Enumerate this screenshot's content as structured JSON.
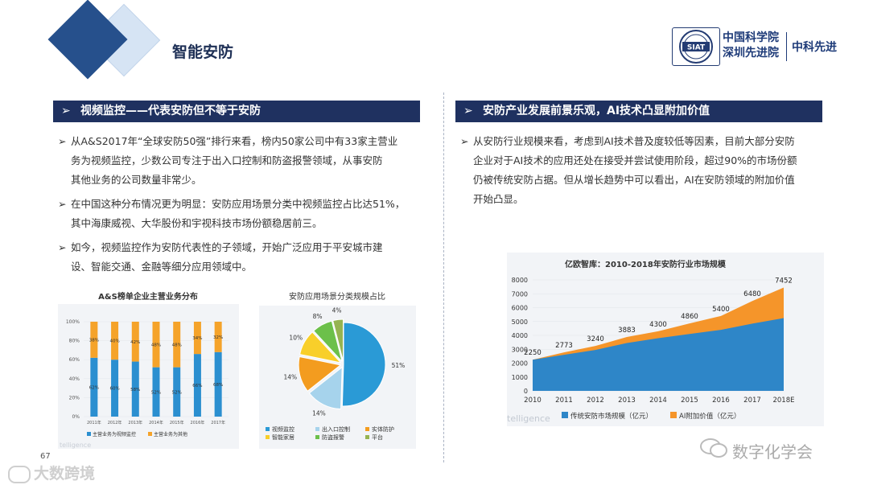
{
  "header": {
    "title": "智能安防",
    "logo_badge": "SIAT",
    "logo_line1": "中国科学院",
    "logo_line2": "深圳先进院",
    "logo_brand": "中科先进"
  },
  "left": {
    "section_title": "视频监控——代表安防但不等于安防",
    "bullet_glyph": "➢",
    "bullets": [
      {
        "lines": [
          "从A&S2017年“全球安防50强”排行来看，榜内50家公司中有33家主营业",
          "务为视频监控，少数公司专注于出入口控制和防盗报警领域，从事安防",
          "其他业务的公司数量非常少。"
        ]
      },
      {
        "lines": [
          "在中国这种分布情况更为明显：安防应用场景分类中视频监控占比达51%，",
          "其中海康威视、大华股份和宇视科技市场份额稳居前三。"
        ]
      },
      {
        "lines": [
          "如今，视频监控作为安防代表性的子领域，开始广泛应用于平安城市建",
          "设、智能交通、金融等细分应用领域中。"
        ]
      }
    ]
  },
  "right": {
    "section_title": "安防产业发展前景乐观，AI技术凸显附加价值",
    "bullets": [
      {
        "lines": [
          "从安防行业规模来看，考虑到AI技术普及度较低等因素，目前大部分安防",
          "企业对于AI技术的应用还处在接受并尝试使用阶段，超过90%的市场份额",
          "仍被传统安防占据。但从增长趋势中可以看出，AI在安防领域的附加价值",
          "开始凸显。"
        ]
      }
    ]
  },
  "footer": {
    "page_number": "67",
    "watermark_left": "大数跨境",
    "watermark_right": "数字化学会",
    "chart_watermark": "telligence"
  },
  "colors": {
    "navy": "#1f3160",
    "blue": "#2b8fd0",
    "orange": "#f5a32a",
    "chart_blue": "#2e86c8",
    "chart_orange": "#f5952a"
  },
  "chart_data": [
    {
      "type": "bar",
      "title": "A&S榜单企业主营业务分布",
      "categories": [
        "2011年",
        "2012年",
        "2013年",
        "2014年",
        "2015年",
        "2016年",
        "2017年"
      ],
      "series": [
        {
          "name": "主营业务为视频监控",
          "values": [
            62,
            60,
            58,
            52,
            52,
            66,
            68
          ],
          "labels": [
            "62%",
            "60%",
            "58%",
            "52%",
            "52%",
            "66%",
            "68%"
          ]
        },
        {
          "name": "主营业务为其他",
          "values": [
            38,
            40,
            42,
            48,
            48,
            34,
            32
          ],
          "labels": [
            "38%",
            "40%",
            "42%",
            "48%",
            "48%",
            "34%",
            "32%"
          ]
        }
      ],
      "stacked": true,
      "ylim": [
        0,
        100
      ],
      "yticks": [
        "0%",
        "20%",
        "40%",
        "60%",
        "80%",
        "100%"
      ],
      "legend_position": "bottom"
    },
    {
      "type": "pie",
      "title": "安防应用场景分类规模占比",
      "slices": [
        {
          "name": "视频监控",
          "value": 51,
          "label": "51%",
          "color": "#2a9ad6"
        },
        {
          "name": "出入口控制",
          "value": 14,
          "label": "14%",
          "color": "#a6d3ec"
        },
        {
          "name": "实体防护",
          "value": 14,
          "label": "14%",
          "color": "#f39c1f"
        },
        {
          "name": "智能家居",
          "value": 10,
          "label": "10%",
          "color": "#f8cf2a"
        },
        {
          "name": "防盗报警",
          "value": 8,
          "label": "8%",
          "color": "#6cc04a"
        },
        {
          "name": "平台",
          "value": 4,
          "label": "4%",
          "color": "#96b451"
        }
      ],
      "legend_position": "bottom"
    },
    {
      "type": "area",
      "title": "亿欧智库：2010-2018年安防行业市场规模",
      "x": [
        "2010",
        "2011",
        "2012",
        "2013",
        "2014",
        "2015",
        "2016",
        "2017",
        "2018E"
      ],
      "series": [
        {
          "name": "传统安防市场规模（亿元）",
          "values": [
            2250,
            2600,
            2950,
            3450,
            3800,
            4100,
            4400,
            4850,
            5250
          ]
        },
        {
          "name": "AI附加价值（亿元）",
          "values": [
            0,
            173,
            290,
            433,
            500,
            760,
            1000,
            1630,
            2202
          ]
        }
      ],
      "total_labels": [
        "2250",
        "2773",
        "3240",
        "3883",
        "4300",
        "4860",
        "5400",
        "6480",
        "7452"
      ],
      "ylim": [
        0,
        8000
      ],
      "yticks": [
        "0",
        "1000",
        "2000",
        "3000",
        "4000",
        "5000",
        "6000",
        "7000",
        "8000"
      ],
      "stacked": true,
      "legend_position": "bottom"
    }
  ]
}
